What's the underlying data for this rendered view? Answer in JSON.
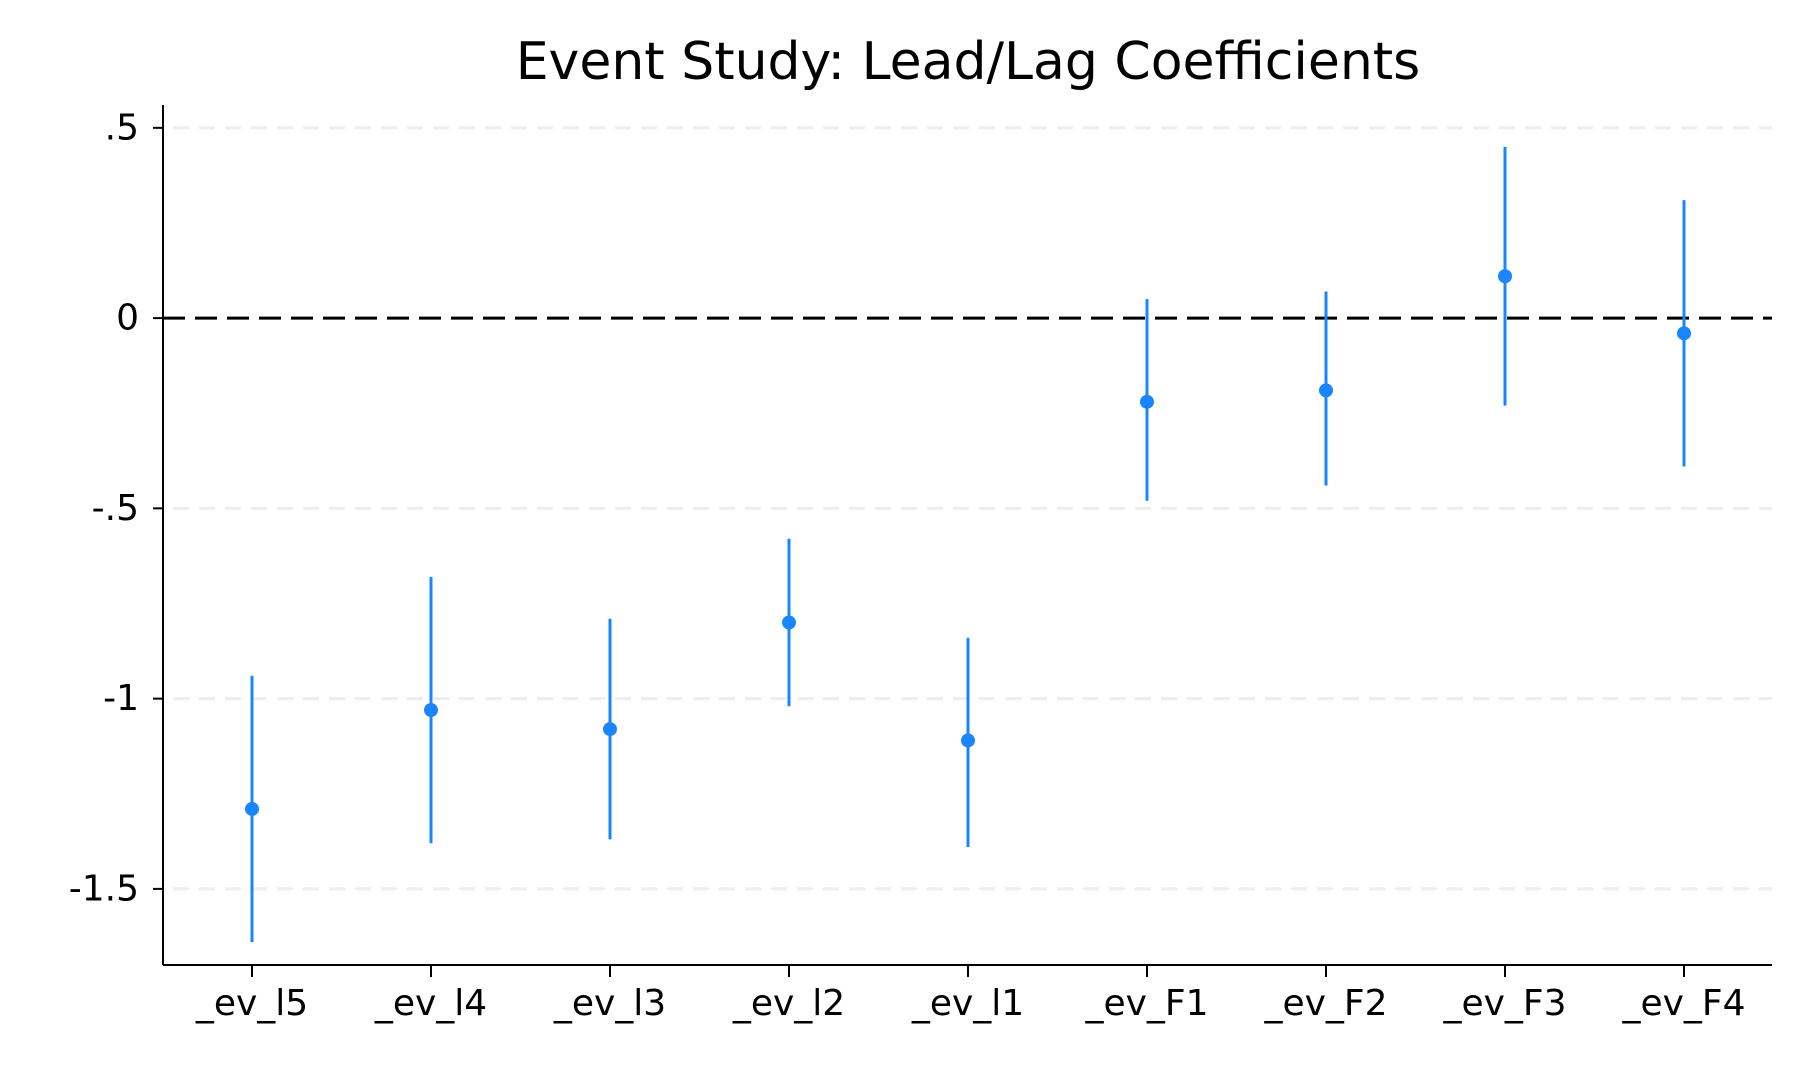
{
  "chart_data": {
    "type": "scatter",
    "title": "Event Study: Lead/Lag Coefficients",
    "xlabel": "",
    "ylabel": "",
    "categories": [
      "_ev_l5",
      "_ev_l4",
      "_ev_l3",
      "_ev_l2",
      "_ev_l1",
      "_ev_F1",
      "_ev_F2",
      "_ev_F3",
      "_ev_F4"
    ],
    "series": [
      {
        "values": [
          -1.29,
          -1.03,
          -1.08,
          -0.8,
          -1.11,
          -0.22,
          -0.19,
          0.11,
          -0.04
        ],
        "ci_low": [
          -1.64,
          -1.38,
          -1.37,
          -1.02,
          -1.39,
          -0.48,
          -0.44,
          -0.23,
          -0.39
        ],
        "ci_high": [
          -0.94,
          -0.68,
          -0.79,
          -0.58,
          -0.84,
          0.05,
          0.07,
          0.45,
          0.31
        ]
      }
    ],
    "ylim": [
      -1.7,
      0.56
    ],
    "yticks": [
      0.5,
      0,
      -0.5,
      -1,
      -1.5
    ],
    "ytick_labels": [
      ".5",
      "0",
      "-.5",
      "-1",
      "-1.5"
    ],
    "reference_line": 0,
    "grid": "horizontal dashed",
    "colors": {
      "marker": "#1a85ff",
      "reference": "#000000",
      "grid": "#eeeeee",
      "axis": "#000000"
    }
  }
}
